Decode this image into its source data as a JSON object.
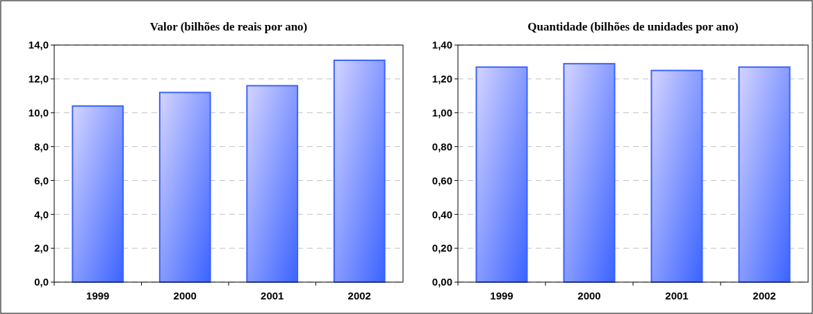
{
  "chart_data": [
    {
      "type": "bar",
      "title": "Valor (bilhões de reais por ano)",
      "categories": [
        "1999",
        "2000",
        "2001",
        "2002"
      ],
      "values": [
        10.4,
        11.2,
        11.6,
        13.1
      ],
      "color": "#3b63ff",
      "ylim": [
        0,
        14
      ],
      "yticks": [
        {
          "value": 0,
          "label": "0,0"
        },
        {
          "value": 2,
          "label": "2,0"
        },
        {
          "value": 4,
          "label": "4,0"
        },
        {
          "value": 6,
          "label": "6,0"
        },
        {
          "value": 8,
          "label": "8,0"
        },
        {
          "value": 10,
          "label": "10,0"
        },
        {
          "value": 12,
          "label": "12,0"
        },
        {
          "value": 14,
          "label": "14,0"
        }
      ],
      "grid": "y"
    },
    {
      "type": "bar",
      "title": "Quantidade (bilhões de unidades por ano)",
      "categories": [
        "1999",
        "2000",
        "2001",
        "2002"
      ],
      "values": [
        1.27,
        1.29,
        1.25,
        1.27
      ],
      "color": "#3b63ff",
      "ylim": [
        0,
        1.4
      ],
      "yticks": [
        {
          "value": 0,
          "label": "0,00"
        },
        {
          "value": 0.2,
          "label": "0,20"
        },
        {
          "value": 0.4,
          "label": "0,40"
        },
        {
          "value": 0.6,
          "label": "0,60"
        },
        {
          "value": 0.8,
          "label": "0,80"
        },
        {
          "value": 1,
          "label": "1,00"
        },
        {
          "value": 1.2,
          "label": "1,20"
        },
        {
          "value": 1.4,
          "label": "1,40"
        }
      ],
      "grid": "y"
    }
  ]
}
